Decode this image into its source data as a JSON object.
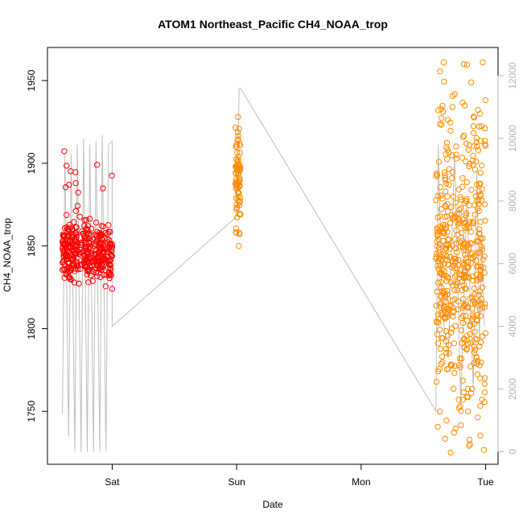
{
  "chart_data": {
    "type": "scatter",
    "title": "ATOM1 Northeast_Pacific CH4_NOAA_trop",
    "xlabel": "Date",
    "ylabel": "CH4_NOAA_trop",
    "x_ticks": [
      "Sat",
      "Sun",
      "Mon",
      "Tue"
    ],
    "x_range_days": [
      -0.52,
      3.1
    ],
    "y_ticks": [
      1750,
      1800,
      1850,
      1900,
      1950
    ],
    "ylim": [
      1718,
      1970
    ],
    "y2_ticks": [
      0,
      2000,
      4000,
      6000,
      8000,
      10000,
      12000
    ],
    "y2lim": [
      -400,
      12900
    ],
    "grid": false,
    "colors": {
      "flight_1_points": "#ff0000",
      "flight_2_points": "#ff8c00",
      "altitude_line": "#bebebe",
      "axis": "#000000",
      "right_axis": "#b4b4b4"
    },
    "series": [
      {
        "role": "points-flight-1",
        "x_range_days": [
          -0.4,
          0.0
        ],
        "y_range": [
          1822,
          1909
        ],
        "typical_y_range": [
          1825,
          1870
        ]
      },
      {
        "role": "points-flight-2a",
        "x_range_days": [
          0.99,
          1.03
        ],
        "y_range": [
          1850,
          1934
        ]
      },
      {
        "role": "points-flight-2b",
        "x_range_days": [
          2.6,
          3.0
        ],
        "y_range": [
          1722,
          1961
        ]
      },
      {
        "role": "altitude-line-right-axis",
        "x": [
          -0.4,
          -0.38,
          -0.35,
          -0.33,
          -0.3,
          -0.28,
          -0.25,
          -0.23,
          -0.2,
          -0.18,
          -0.15,
          -0.13,
          -0.1,
          -0.08,
          -0.05,
          -0.03,
          0.0,
          0.0,
          1.0,
          1.02,
          1.03,
          2.6,
          2.62,
          2.65,
          2.7,
          2.75,
          2.8,
          2.85,
          2.9,
          2.93,
          2.95,
          2.97,
          2.99
        ],
        "y": [
          1200,
          9500,
          500,
          9500,
          0,
          9800,
          0,
          10000,
          0,
          9800,
          0,
          9900,
          0,
          10100,
          0,
          9800,
          9900,
          4000,
          7500,
          11600,
          11600,
          1300,
          9800,
          4500,
          3000,
          9500,
          1500,
          8000,
          2000,
          9000,
          3500,
          7000,
          4000
        ]
      }
    ]
  }
}
